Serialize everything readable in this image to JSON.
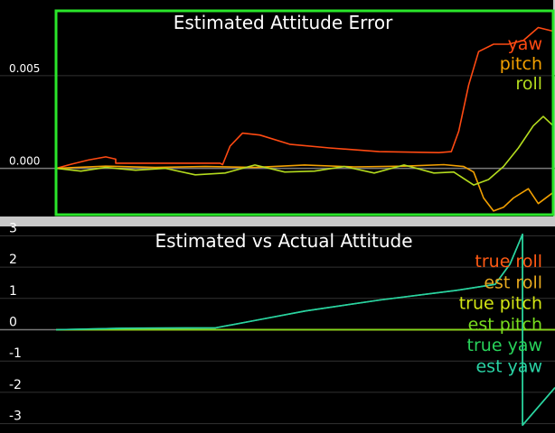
{
  "chart_data": [
    {
      "type": "line",
      "title": "Estimated Attitude Error",
      "xlabel": "",
      "ylabel": "",
      "grid": true,
      "ylim": [
        -0.0025,
        0.0085
      ],
      "xlim": [
        0,
        1
      ],
      "yticks": [
        {
          "value": 0.005,
          "label": "0.005"
        },
        {
          "value": 0.0,
          "label": "0.000"
        }
      ],
      "legend_position": "top-right",
      "series": [
        {
          "name": "yaw",
          "color": "#ff4a12",
          "points": [
            [
              0.0,
              0.0
            ],
            [
              0.03,
              0.00022
            ],
            [
              0.065,
              0.00045
            ],
            [
              0.1,
              0.00062
            ],
            [
              0.12,
              0.0005
            ],
            [
              0.12,
              0.00028
            ],
            [
              0.33,
              0.00028
            ],
            [
              0.335,
              0.0002
            ],
            [
              0.35,
              0.0012
            ],
            [
              0.375,
              0.0019
            ],
            [
              0.41,
              0.0018
            ],
            [
              0.47,
              0.0013
            ],
            [
              0.55,
              0.0011
            ],
            [
              0.65,
              0.0009
            ],
            [
              0.77,
              0.00085
            ],
            [
              0.795,
              0.0009
            ],
            [
              0.81,
              0.002
            ],
            [
              0.83,
              0.0045
            ],
            [
              0.85,
              0.0063
            ],
            [
              0.88,
              0.0067
            ],
            [
              0.91,
              0.0067
            ],
            [
              0.94,
              0.0069
            ],
            [
              0.97,
              0.0076
            ],
            [
              1.0,
              0.0074
            ]
          ]
        },
        {
          "name": "pitch",
          "color": "#f2a000",
          "points": [
            [
              0.0,
              0.0
            ],
            [
              0.1,
              0.00012
            ],
            [
              0.2,
              5e-05
            ],
            [
              0.3,
              0.0001
            ],
            [
              0.4,
              5e-05
            ],
            [
              0.5,
              0.00018
            ],
            [
              0.6,
              8e-05
            ],
            [
              0.7,
              0.00012
            ],
            [
              0.78,
              0.0002
            ],
            [
              0.82,
              0.0001
            ],
            [
              0.84,
              -0.0002
            ],
            [
              0.86,
              -0.0016
            ],
            [
              0.88,
              -0.0023
            ],
            [
              0.9,
              -0.0021
            ],
            [
              0.92,
              -0.0016
            ],
            [
              0.95,
              -0.0011
            ],
            [
              0.97,
              -0.0019
            ],
            [
              1.0,
              -0.0013
            ]
          ]
        },
        {
          "name": "roll",
          "color": "#b4dc1e",
          "points": [
            [
              0.0,
              0.0
            ],
            [
              0.05,
              -0.00015
            ],
            [
              0.1,
              5e-05
            ],
            [
              0.16,
              -0.0001
            ],
            [
              0.22,
              0.0
            ],
            [
              0.28,
              -0.00035
            ],
            [
              0.34,
              -0.00025
            ],
            [
              0.4,
              0.00018
            ],
            [
              0.46,
              -0.0002
            ],
            [
              0.52,
              -0.00015
            ],
            [
              0.58,
              0.0001
            ],
            [
              0.64,
              -0.00025
            ],
            [
              0.7,
              0.00018
            ],
            [
              0.76,
              -0.00025
            ],
            [
              0.8,
              -0.0002
            ],
            [
              0.84,
              -0.0009
            ],
            [
              0.87,
              -0.0006
            ],
            [
              0.9,
              0.0001
            ],
            [
              0.93,
              0.0011
            ],
            [
              0.96,
              0.0023
            ],
            [
              0.98,
              0.0028
            ],
            [
              1.0,
              0.0023
            ]
          ]
        }
      ]
    },
    {
      "type": "line",
      "title": "Estimated vs Actual Attitude",
      "xlabel": "",
      "ylabel": "",
      "grid": true,
      "ylim": [
        -3.3,
        3.3
      ],
      "xlim": [
        0,
        1
      ],
      "yticks": [
        {
          "value": 3,
          "label": "3"
        },
        {
          "value": 2,
          "label": "2"
        },
        {
          "value": 1,
          "label": "1"
        },
        {
          "value": 0,
          "label": "0"
        },
        {
          "value": -1,
          "label": "-1"
        },
        {
          "value": -2,
          "label": "-2"
        },
        {
          "value": -3,
          "label": "-3"
        }
      ],
      "legend_position": "top-right",
      "series": [
        {
          "name": "true roll",
          "color": "#ff5a14",
          "points": [
            [
              0.0,
              0.0
            ],
            [
              1.0,
              0.0
            ]
          ]
        },
        {
          "name": "est roll",
          "color": "#e6a81e",
          "points": [
            [
              0.0,
              0.0
            ],
            [
              1.0,
              0.0
            ]
          ]
        },
        {
          "name": "true pitch",
          "color": "#d4e614",
          "points": [
            [
              0.0,
              0.0
            ],
            [
              1.0,
              0.0
            ]
          ]
        },
        {
          "name": "est pitch",
          "color": "#78dc1e",
          "points": [
            [
              0.0,
              0.0
            ],
            [
              1.0,
              0.0
            ]
          ]
        },
        {
          "name": "true yaw",
          "color": "#28d25a",
          "points": [
            [
              0.0,
              0.0
            ],
            [
              0.14,
              0.05
            ],
            [
              0.32,
              0.06
            ],
            [
              0.4,
              0.3
            ],
            [
              0.5,
              0.6
            ],
            [
              0.65,
              0.95
            ],
            [
              0.8,
              1.25
            ],
            [
              0.88,
              1.45
            ],
            [
              0.91,
              2.1
            ],
            [
              0.935,
              3.05
            ],
            [
              0.935,
              -3.05
            ],
            [
              1.0,
              -1.85
            ]
          ]
        },
        {
          "name": "est yaw",
          "color": "#2ad2a4",
          "points": [
            [
              0.0,
              0.0
            ],
            [
              0.14,
              0.05
            ],
            [
              0.32,
              0.06
            ],
            [
              0.4,
              0.3
            ],
            [
              0.5,
              0.6
            ],
            [
              0.65,
              0.95
            ],
            [
              0.8,
              1.25
            ],
            [
              0.88,
              1.45
            ],
            [
              0.91,
              2.1
            ],
            [
              0.935,
              3.05
            ],
            [
              0.935,
              -3.05
            ],
            [
              1.0,
              -1.85
            ]
          ]
        }
      ]
    }
  ],
  "colors": {
    "plot_background": "#000000",
    "grid": "#323232",
    "axis_text": "#ffffff",
    "title_text": "#ffffff",
    "zero_line": "#7a7a7a",
    "selected_border": "#2ae62a"
  }
}
